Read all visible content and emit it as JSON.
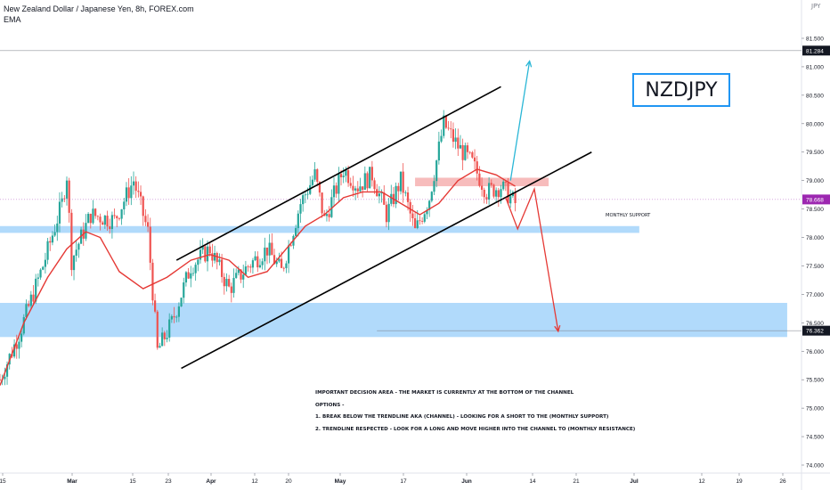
{
  "header": {
    "title": "New Zealand Dollar / Japanese Yen, 8h, FOREX.com",
    "indicator": "EMA"
  },
  "symbol_label": "NZDJPY",
  "logo": "JPY",
  "annotations": {
    "monthly_support": "MONTHLY SUPPORT",
    "notes": [
      "IMPORTANT DECISION AREA - THE MARKET IS CURRENTLY AT THE BOTTOM OF THE CHANNEL",
      "OPTIONS -",
      "1. BREAK BELOW THE TRENDLINE AKA (CHANNEL) - LOOKING FOR A SHORT TO THE (MONTHLY SUPPORT)",
      "2. TRENDLINE RESPECTED - LOOK FOR A LONG AND MOVE HIGHER INTO THE CHANNEL TO (MONTHLY RESISTANCE)"
    ]
  },
  "colors": {
    "up": "#26a69a",
    "down": "#ef5350",
    "ema": "#e53935",
    "zone_blue": "#90caf9",
    "zone_red": "#f4a6a6",
    "arrow_up": "#29b6d6",
    "arrow_down": "#e53935",
    "price_tag": "#9c27b0",
    "dark_tag": "#131722"
  },
  "chart_data": {
    "type": "candlestick",
    "timeframe": "8h",
    "x_axis": {
      "ticks": [
        "15",
        "Mar",
        "15",
        "23",
        "Apr",
        "12",
        "20",
        "May",
        "17",
        "Jun",
        "14",
        "21",
        "Jul",
        "12",
        "19",
        "26"
      ]
    },
    "y_axis": {
      "range": [
        73.9,
        81.6
      ],
      "ticks": [
        "81.500",
        "81.000",
        "80.500",
        "80.000",
        "79.500",
        "79.000",
        "78.500",
        "78.000",
        "77.500",
        "77.000",
        "76.500",
        "76.000",
        "75.500",
        "75.000",
        "74.500",
        "74.000"
      ]
    },
    "price_tags": {
      "current": "78.668",
      "top_line": "81.284",
      "target": "76.362"
    },
    "ohlc_anchors": [
      {
        "t": 0,
        "price": 75.5
      },
      {
        "t": 4,
        "price": 76.3
      },
      {
        "t": 9,
        "price": 77.5
      },
      {
        "t": 13,
        "price": 78.6
      },
      {
        "t": 14,
        "price": 79.1
      },
      {
        "t": 15,
        "price": 77.6
      },
      {
        "t": 19,
        "price": 78.4
      },
      {
        "t": 24,
        "price": 78.3
      },
      {
        "t": 28,
        "price": 79.0
      },
      {
        "t": 31,
        "price": 78.1
      },
      {
        "t": 33,
        "price": 76.0
      },
      {
        "t": 36,
        "price": 76.5
      },
      {
        "t": 40,
        "price": 77.5
      },
      {
        "t": 44,
        "price": 77.8
      },
      {
        "t": 48,
        "price": 77.1
      },
      {
        "t": 52,
        "price": 77.5
      },
      {
        "t": 56,
        "price": 77.8
      },
      {
        "t": 59,
        "price": 77.4
      },
      {
        "t": 63,
        "price": 78.6
      },
      {
        "t": 66,
        "price": 79.1
      },
      {
        "t": 68,
        "price": 78.3
      },
      {
        "t": 72,
        "price": 79.2
      },
      {
        "t": 75,
        "price": 78.9
      },
      {
        "t": 78,
        "price": 79.1
      },
      {
        "t": 81,
        "price": 78.4
      },
      {
        "t": 84,
        "price": 79.0
      },
      {
        "t": 87,
        "price": 78.1
      },
      {
        "t": 90,
        "price": 78.7
      },
      {
        "t": 93,
        "price": 80.0
      },
      {
        "t": 96,
        "price": 79.6
      },
      {
        "t": 99,
        "price": 79.3
      },
      {
        "t": 102,
        "price": 78.8
      },
      {
        "t": 105,
        "price": 78.9
      },
      {
        "t": 108,
        "price": 78.6
      }
    ],
    "ema": [
      {
        "t": 0,
        "price": 75.4
      },
      {
        "t": 5,
        "price": 76.5
      },
      {
        "t": 10,
        "price": 77.3
      },
      {
        "t": 14,
        "price": 77.8
      },
      {
        "t": 18,
        "price": 78.1
      },
      {
        "t": 21,
        "price": 78.0
      },
      {
        "t": 25,
        "price": 77.4
      },
      {
        "t": 30,
        "price": 77.1
      },
      {
        "t": 35,
        "price": 77.3
      },
      {
        "t": 40,
        "price": 77.6
      },
      {
        "t": 44,
        "price": 77.7
      },
      {
        "t": 48,
        "price": 77.6
      },
      {
        "t": 52,
        "price": 77.3
      },
      {
        "t": 56,
        "price": 77.4
      },
      {
        "t": 60,
        "price": 77.8
      },
      {
        "t": 64,
        "price": 78.2
      },
      {
        "t": 68,
        "price": 78.4
      },
      {
        "t": 72,
        "price": 78.7
      },
      {
        "t": 76,
        "price": 78.8
      },
      {
        "t": 80,
        "price": 78.8
      },
      {
        "t": 84,
        "price": 78.6
      },
      {
        "t": 88,
        "price": 78.4
      },
      {
        "t": 92,
        "price": 78.6
      },
      {
        "t": 96,
        "price": 79.0
      },
      {
        "t": 100,
        "price": 79.2
      },
      {
        "t": 104,
        "price": 79.1
      },
      {
        "t": 108,
        "price": 78.9
      }
    ],
    "zones": [
      {
        "name": "upper-blue",
        "from_price": 78.08,
        "to_price": 78.2,
        "t_start": -2,
        "t_end": 134,
        "color": "blue"
      },
      {
        "name": "lower-blue",
        "from_price": 76.25,
        "to_price": 76.85,
        "t_start": -2,
        "t_end": 165,
        "color": "blue"
      },
      {
        "name": "red-resistance",
        "from_price": 78.9,
        "to_price": 79.05,
        "t_start": 87,
        "t_end": 115,
        "color": "red"
      }
    ],
    "channel": {
      "upper": [
        {
          "t": 37,
          "price": 77.6
        },
        {
          "t": 105,
          "price": 80.65
        }
      ],
      "lower": [
        {
          "t": 38,
          "price": 75.7
        },
        {
          "t": 124,
          "price": 79.5
        }
      ]
    },
    "arrows": [
      {
        "name": "long-scenario",
        "points": [
          {
            "t": 107,
            "price": 79.0
          },
          {
            "t": 111,
            "price": 81.1
          }
        ]
      },
      {
        "name": "short-scenario",
        "points": [
          {
            "t": 106,
            "price": 78.7
          },
          {
            "t": 108.5,
            "price": 78.15
          },
          {
            "t": 112,
            "price": 78.85
          },
          {
            "t": 117,
            "price": 76.35
          }
        ]
      }
    ],
    "horizontal_lines": [
      {
        "price": 81.284,
        "t_start": 0,
        "t_end": 168
      },
      {
        "price": 78.668,
        "t_start": 0,
        "t_end": 168
      },
      {
        "price": 76.362,
        "t_start": 79,
        "t_end": 168
      }
    ]
  }
}
